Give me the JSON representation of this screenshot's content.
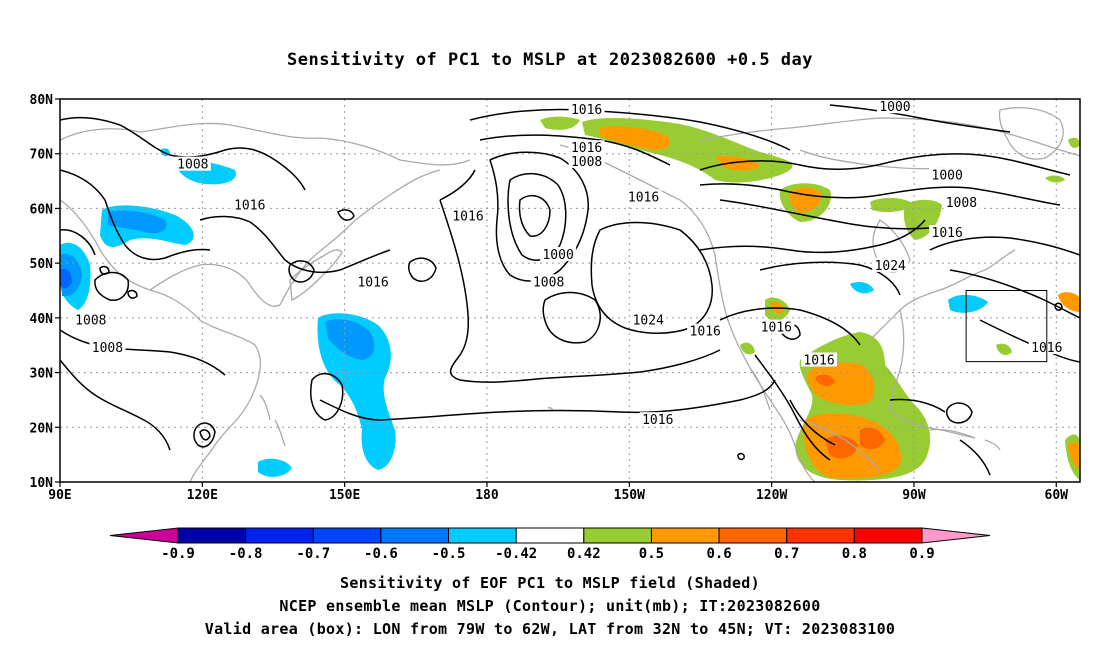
{
  "title": "Sensitivity of PC1 to MSLP at 2023082600 +0.5 day",
  "map": {
    "lon_range": [
      90,
      305
    ],
    "lat_range": [
      10,
      80
    ],
    "lat_ticks": [
      {
        "value": 10,
        "label": "10N"
      },
      {
        "value": 20,
        "label": "20N"
      },
      {
        "value": 30,
        "label": "30N"
      },
      {
        "value": 40,
        "label": "40N"
      },
      {
        "value": 50,
        "label": "50N"
      },
      {
        "value": 60,
        "label": "60N"
      },
      {
        "value": 70,
        "label": "70N"
      },
      {
        "value": 80,
        "label": "80N"
      }
    ],
    "lon_ticks": [
      {
        "value": 90,
        "label": "90E"
      },
      {
        "value": 120,
        "label": "120E"
      },
      {
        "value": 150,
        "label": "150E"
      },
      {
        "value": 180,
        "label": "180"
      },
      {
        "value": 210,
        "label": "150W"
      },
      {
        "value": 240,
        "label": "120W"
      },
      {
        "value": 270,
        "label": "90W"
      },
      {
        "value": 300,
        "label": "60W"
      }
    ],
    "valid_box": {
      "lon": [
        281,
        298
      ],
      "lat": [
        32,
        45
      ]
    },
    "contour_labels": [
      {
        "text": "1016",
        "lon": 201,
        "lat": 78
      },
      {
        "text": "1000",
        "lon": 266,
        "lat": 78.5
      },
      {
        "text": "1008",
        "lon": 118,
        "lat": 68
      },
      {
        "text": "1016",
        "lon": 201,
        "lat": 71
      },
      {
        "text": "1008",
        "lon": 201,
        "lat": 68.5
      },
      {
        "text": "1000",
        "lon": 277,
        "lat": 66
      },
      {
        "text": "1008",
        "lon": 280,
        "lat": 61
      },
      {
        "text": "1016",
        "lon": 213,
        "lat": 62
      },
      {
        "text": "1016",
        "lon": 130,
        "lat": 60.5
      },
      {
        "text": "1016",
        "lon": 176,
        "lat": 58.5
      },
      {
        "text": "1016",
        "lon": 277,
        "lat": 55.5
      },
      {
        "text": "1000",
        "lon": 195,
        "lat": 51.5
      },
      {
        "text": "1024",
        "lon": 265,
        "lat": 49.5
      },
      {
        "text": "1008",
        "lon": 193,
        "lat": 46.5
      },
      {
        "text": "1016",
        "lon": 156,
        "lat": 46.5
      },
      {
        "text": "1008",
        "lon": 96.5,
        "lat": 39.5
      },
      {
        "text": "1024",
        "lon": 214,
        "lat": 39.5
      },
      {
        "text": "1016",
        "lon": 226,
        "lat": 37.5
      },
      {
        "text": "1016",
        "lon": 241,
        "lat": 38.2
      },
      {
        "text": "1008",
        "lon": 100,
        "lat": 34.5
      },
      {
        "text": "1016",
        "lon": 298,
        "lat": 34.5
      },
      {
        "text": "1016",
        "lon": 250,
        "lat": 32.2
      },
      {
        "text": "1016",
        "lon": 216,
        "lat": 21.3
      }
    ],
    "colors": {
      "contour": "#000000",
      "coast": "#aaaaaa",
      "grid": "#999999",
      "lev_pos_0": "#99cc33",
      "lev_pos_1": "#ff9900",
      "lev_pos_2": "#ff6600",
      "lev_neg_0": "#00ccff",
      "lev_neg_1": "#0099ff",
      "lev_neg_2": "#0066ff"
    }
  },
  "colorbar": {
    "colors": [
      "#cc0099",
      "#0000aa",
      "#0022ee",
      "#0044ff",
      "#0077ff",
      "#00ccff",
      "#ffffff",
      "#99cc33",
      "#ff9900",
      "#ff6600",
      "#ff3300",
      "#ff0000",
      "#ff99cc"
    ],
    "labels": [
      "-0.9",
      "-0.8",
      "-0.7",
      "-0.6",
      "-0.5",
      "-0.42",
      "0.42",
      "0.5",
      "0.6",
      "0.7",
      "0.8",
      "0.9"
    ]
  },
  "captions": {
    "line1": "Sensitivity of EOF PC1 to MSLP field (Shaded)",
    "line2": "NCEP ensemble mean MSLP (Contour); unit(mb); IT:2023082600",
    "line3": "Valid area (box): LON from 79W to 62W, LAT from 32N to 45N; VT: 2023083100"
  }
}
